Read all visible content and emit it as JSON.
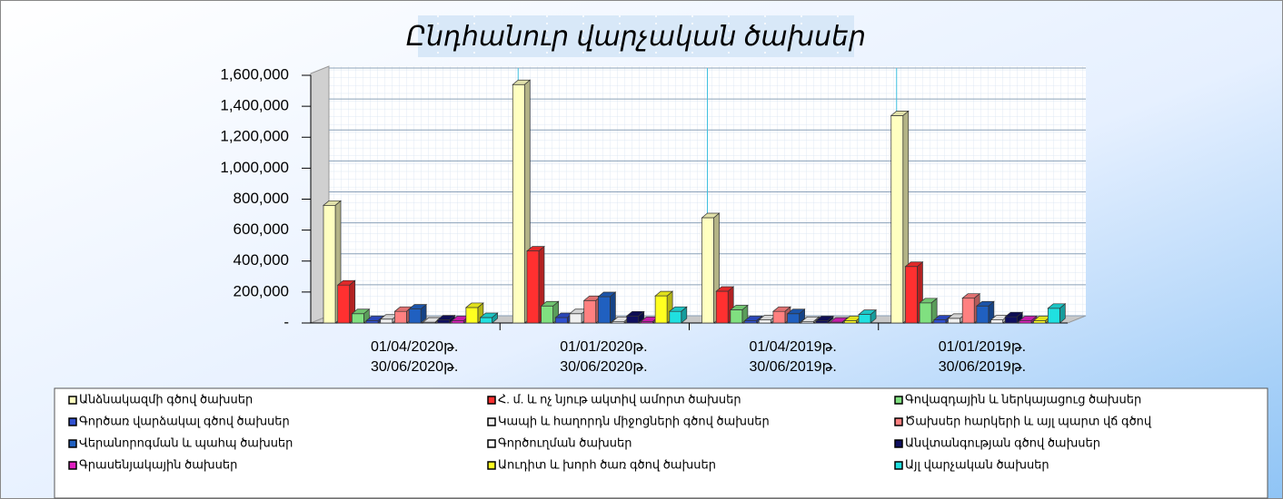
{
  "chart_data": {
    "type": "bar",
    "title": "Ընդհանուր վարչական ծախսեր",
    "categories": [
      [
        "01/04/2020թ.",
        "30/06/2020թ."
      ],
      [
        "01/01/2020թ.",
        "30/06/2020թ."
      ],
      [
        "01/04/2019թ.",
        "30/06/2019թ."
      ],
      [
        "01/01/2019թ.",
        "30/06/2019թ."
      ]
    ],
    "series": [
      {
        "name": "Անձնակազմի գծով ծախսեր",
        "color": "#ffffc0",
        "values": [
          760000,
          1540000,
          680000,
          1340000
        ]
      },
      {
        "name": "Հ. մ. և ոչ նյութ ակտիվ ամորտ ծախսեր",
        "color": "#ff3030",
        "values": [
          245000,
          465000,
          205000,
          365000
        ]
      },
      {
        "name": "Գովազդային և ներկայացուց ծախսեր",
        "color": "#80e080",
        "values": [
          60000,
          110000,
          85000,
          130000
        ]
      },
      {
        "name": "Գործառ վարձակալ գծով ծախսեր",
        "color": "#3050d0",
        "values": [
          15000,
          35000,
          15000,
          20000
        ]
      },
      {
        "name": "Կապի և հաղորդն միջոցների գծով ծախսեր",
        "color": "#f0f0f0",
        "values": [
          25000,
          60000,
          20000,
          30000
        ]
      },
      {
        "name": "Ծախսեր հարկերի և այլ պարտ վճ գծով",
        "color": "#ff8080",
        "values": [
          75000,
          145000,
          75000,
          160000
        ]
      },
      {
        "name": "Վերանորոգման և պահպ ծախսեր",
        "color": "#2060c0",
        "values": [
          90000,
          170000,
          60000,
          110000
        ]
      },
      {
        "name": "Գործուղման ծախսեր",
        "color": "#ffffff",
        "values": [
          5000,
          10000,
          10000,
          20000
        ]
      },
      {
        "name": "Անվտանգության գծով ծախսեր",
        "color": "#101060",
        "values": [
          20000,
          45000,
          15000,
          40000
        ]
      },
      {
        "name": "Գրասենյակային ծախսեր",
        "color": "#e020c0",
        "values": [
          15000,
          10000,
          5000,
          15000
        ]
      },
      {
        "name": "Աուդիտ և խորհ ծառ գծով ծախսեր",
        "color": "#ffff20",
        "values": [
          100000,
          175000,
          15000,
          15000
        ]
      },
      {
        "name": "Այլ վարչական ծախսեր",
        "color": "#20e0e0",
        "values": [
          35000,
          75000,
          55000,
          95000
        ]
      }
    ],
    "ylim": [
      0,
      1600000
    ],
    "yticks": [
      {
        "value": 0,
        "label": "-"
      },
      {
        "value": 200000,
        "label": "200,000"
      },
      {
        "value": 400000,
        "label": "400,000"
      },
      {
        "value": 600000,
        "label": "600,000"
      },
      {
        "value": 800000,
        "label": "800,000"
      },
      {
        "value": 1000000,
        "label": "1,000,000"
      },
      {
        "value": 1200000,
        "label": "1,200,000"
      },
      {
        "value": 1400000,
        "label": "1,400,000"
      },
      {
        "value": 1600000,
        "label": "1,600,000"
      }
    ],
    "grid": true,
    "legend": "bottom"
  }
}
